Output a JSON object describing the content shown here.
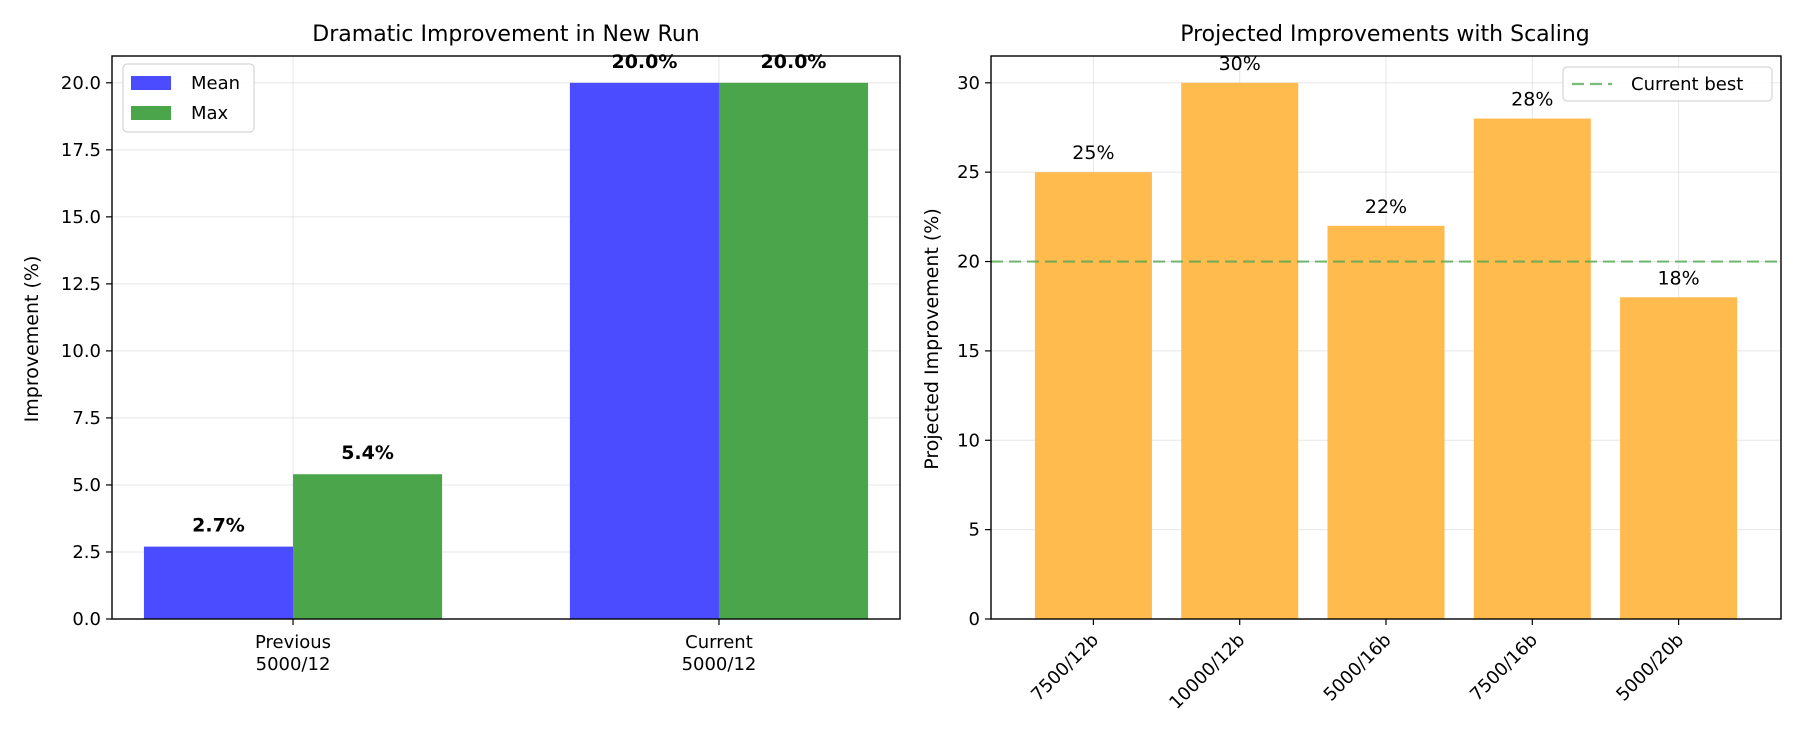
{
  "chart_data": [
    {
      "type": "bar",
      "title": "Dramatic Improvement in New Run",
      "xlabel": "",
      "ylabel": "Improvement (%)",
      "categories": [
        [
          "Previous",
          "5000/12"
        ],
        [
          "Current",
          "5000/12"
        ]
      ],
      "series": [
        {
          "name": "Mean",
          "values": [
            2.7,
            20.0
          ],
          "labels": [
            "2.7%",
            "20.0%"
          ],
          "color": "#4b4bff"
        },
        {
          "name": "Max",
          "values": [
            5.4,
            20.0
          ],
          "labels": [
            "5.4%",
            "20.0%"
          ],
          "color": "#4ba64b"
        }
      ],
      "ylim": [
        0,
        21
      ],
      "yticks": [
        "0.0",
        "2.5",
        "5.0",
        "7.5",
        "10.0",
        "12.5",
        "15.0",
        "17.5",
        "20.0"
      ],
      "grid": true,
      "legend": "upper-left"
    },
    {
      "type": "bar",
      "title": "Projected Improvements with Scaling",
      "xlabel": "",
      "ylabel": "Projected Improvement (%)",
      "categories": [
        "7500/12b",
        "10000/12b",
        "5000/16b",
        "7500/16b",
        "5000/20b"
      ],
      "values": [
        25,
        30,
        22,
        28,
        18
      ],
      "labels": [
        "25%",
        "30%",
        "22%",
        "28%",
        "18%"
      ],
      "color": "#ffbb4d",
      "reference_line": {
        "name": "Current best",
        "y": 20,
        "color": "#4ba64b",
        "style": "dashed"
      },
      "ylim": [
        0,
        31.5
      ],
      "yticks": [
        "0",
        "5",
        "10",
        "15",
        "20",
        "25",
        "30"
      ],
      "grid": true,
      "legend": "upper-right"
    }
  ]
}
